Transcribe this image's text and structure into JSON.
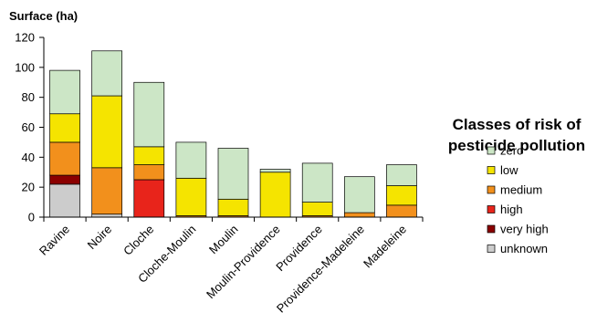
{
  "chart_data": {
    "type": "bar",
    "stacked": true,
    "ylabel": "Surface (ha)",
    "ylim": [
      0,
      120
    ],
    "yticks": [
      0,
      20,
      40,
      60,
      80,
      100,
      120
    ],
    "grid": false,
    "legend_title_lines": [
      "Classes of risk of",
      "pesticide pollution"
    ],
    "legend_placement": "right",
    "categories": [
      "Ravine",
      "Noire",
      "Cloche",
      "Cloche-Moulin",
      "Moulin",
      "Moulin-Providence",
      "Providence",
      "Providence-Madeleine",
      "Madeleine"
    ],
    "series": [
      {
        "name": "unknown",
        "color": "#cccccc",
        "values": [
          22,
          2,
          0,
          0,
          0,
          0,
          0,
          0,
          0
        ]
      },
      {
        "name": "very high",
        "color": "#8b0000",
        "values": [
          6,
          0,
          0,
          0,
          0,
          0,
          0,
          0,
          0
        ]
      },
      {
        "name": "high",
        "color": "#e8241b",
        "values": [
          0,
          0,
          25,
          0,
          0,
          0,
          0,
          0,
          0
        ]
      },
      {
        "name": "medium",
        "color": "#f2901c",
        "values": [
          22,
          31,
          10,
          1,
          1,
          0,
          1,
          3,
          8
        ]
      },
      {
        "name": "low",
        "color": "#f5e400",
        "values": [
          19,
          48,
          12,
          25,
          11,
          30,
          9,
          0,
          13
        ]
      },
      {
        "name": "zero",
        "color": "#cce6c6",
        "values": [
          29,
          30,
          43,
          24,
          34,
          2,
          26,
          24,
          14
        ]
      }
    ],
    "legend_order": [
      "zero",
      "low",
      "medium",
      "high",
      "very high",
      "unknown"
    ]
  }
}
